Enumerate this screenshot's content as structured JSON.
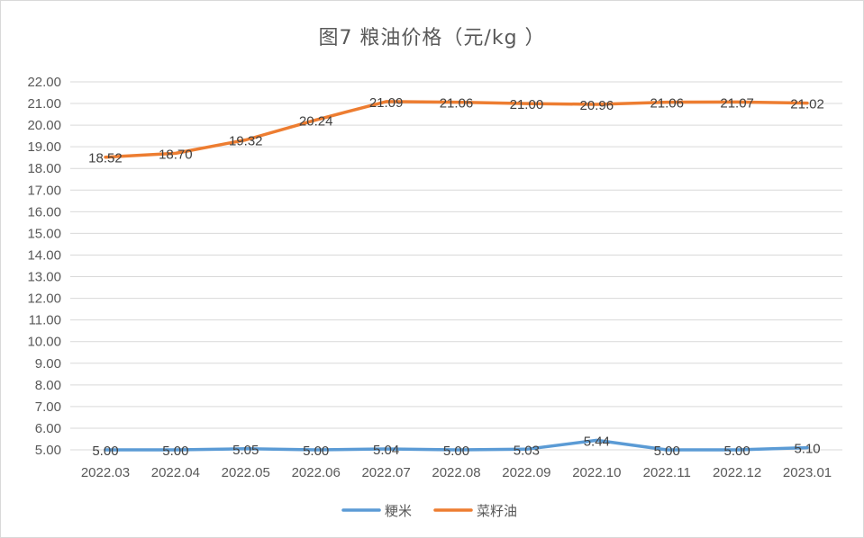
{
  "chart_data": {
    "type": "line",
    "title": "图7  粮油价格（元/kg ）",
    "categories": [
      "2022.03",
      "2022.04",
      "2022.05",
      "2022.06",
      "2022.07",
      "2022.08",
      "2022.09",
      "2022.10",
      "2022.11",
      "2022.12",
      "2023.01"
    ],
    "ylim": [
      5,
      22
    ],
    "yticks": [
      "5.00",
      "6.00",
      "7.00",
      "8.00",
      "9.00",
      "10.00",
      "11.00",
      "12.00",
      "13.00",
      "14.00",
      "15.00",
      "16.00",
      "17.00",
      "18.00",
      "19.00",
      "20.00",
      "21.00",
      "22.00"
    ],
    "grid": true,
    "legend_position": "bottom",
    "series": [
      {
        "name": "粳米",
        "color": "#5b9bd5",
        "values": [
          5.0,
          5.0,
          5.05,
          5.0,
          5.04,
          5.0,
          5.03,
          5.44,
          5.0,
          5.0,
          5.1
        ],
        "labels": [
          "5.00",
          "5.00",
          "5.05",
          "5.00",
          "5.04",
          "5.00",
          "5.03",
          "5.44",
          "5.00",
          "5.00",
          "5.10"
        ]
      },
      {
        "name": "菜籽油",
        "color": "#ed7d31",
        "values": [
          18.52,
          18.7,
          19.32,
          20.24,
          21.09,
          21.06,
          21.0,
          20.96,
          21.06,
          21.07,
          21.02
        ],
        "labels": [
          "18.52",
          "18.70",
          "19.32",
          "20.24",
          "21.09",
          "21.06",
          "21.00",
          "20.96",
          "21.06",
          "21.07",
          "21.02"
        ]
      }
    ]
  }
}
